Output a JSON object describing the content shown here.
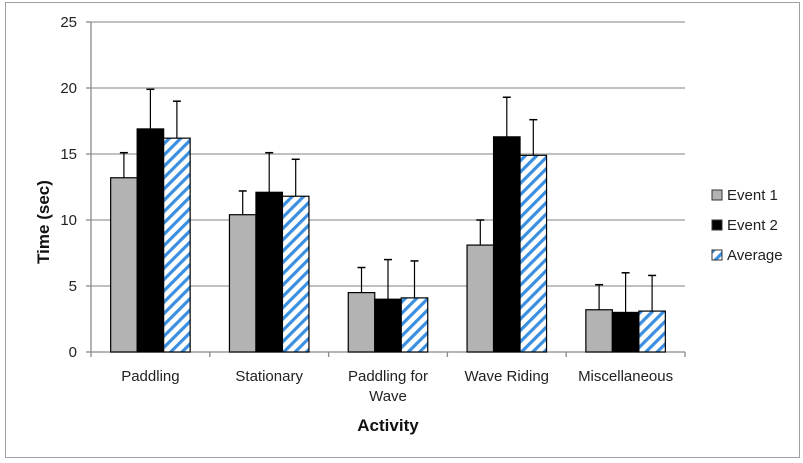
{
  "chart_data": {
    "type": "bar",
    "title": "",
    "xlabel": "Activity",
    "ylabel": "Time (sec)",
    "ylim": [
      0,
      25
    ],
    "yticks": [
      0,
      5,
      10,
      15,
      20,
      25
    ],
    "grid": true,
    "legend_position": "right",
    "categories": [
      "Paddling",
      "Stationary",
      "Paddling for Wave",
      "Wave Riding",
      "Miscellaneous"
    ],
    "category_lines": [
      [
        "Paddling"
      ],
      [
        "Stationary"
      ],
      [
        "Paddling for",
        "Wave"
      ],
      [
        "Wave Riding"
      ],
      [
        "Miscellaneous"
      ]
    ],
    "series": [
      {
        "name": "Event 1",
        "fill": "#b3b3b3",
        "pattern": "solid",
        "values": [
          13.2,
          10.4,
          4.5,
          8.1,
          3.2
        ],
        "error_plus": [
          1.9,
          1.8,
          1.9,
          1.9,
          1.9
        ]
      },
      {
        "name": "Event 2",
        "fill": "#000000",
        "pattern": "solid",
        "values": [
          16.9,
          12.1,
          4.0,
          16.3,
          3.0
        ],
        "error_plus": [
          3.0,
          3.0,
          3.0,
          3.0,
          3.0
        ]
      },
      {
        "name": "Average",
        "fill": "#3a8fe0",
        "pattern": "diagonal-stripes",
        "values": [
          16.2,
          11.8,
          4.1,
          14.9,
          3.1
        ],
        "error_plus": [
          2.8,
          2.8,
          2.8,
          2.7,
          2.7
        ]
      }
    ]
  }
}
